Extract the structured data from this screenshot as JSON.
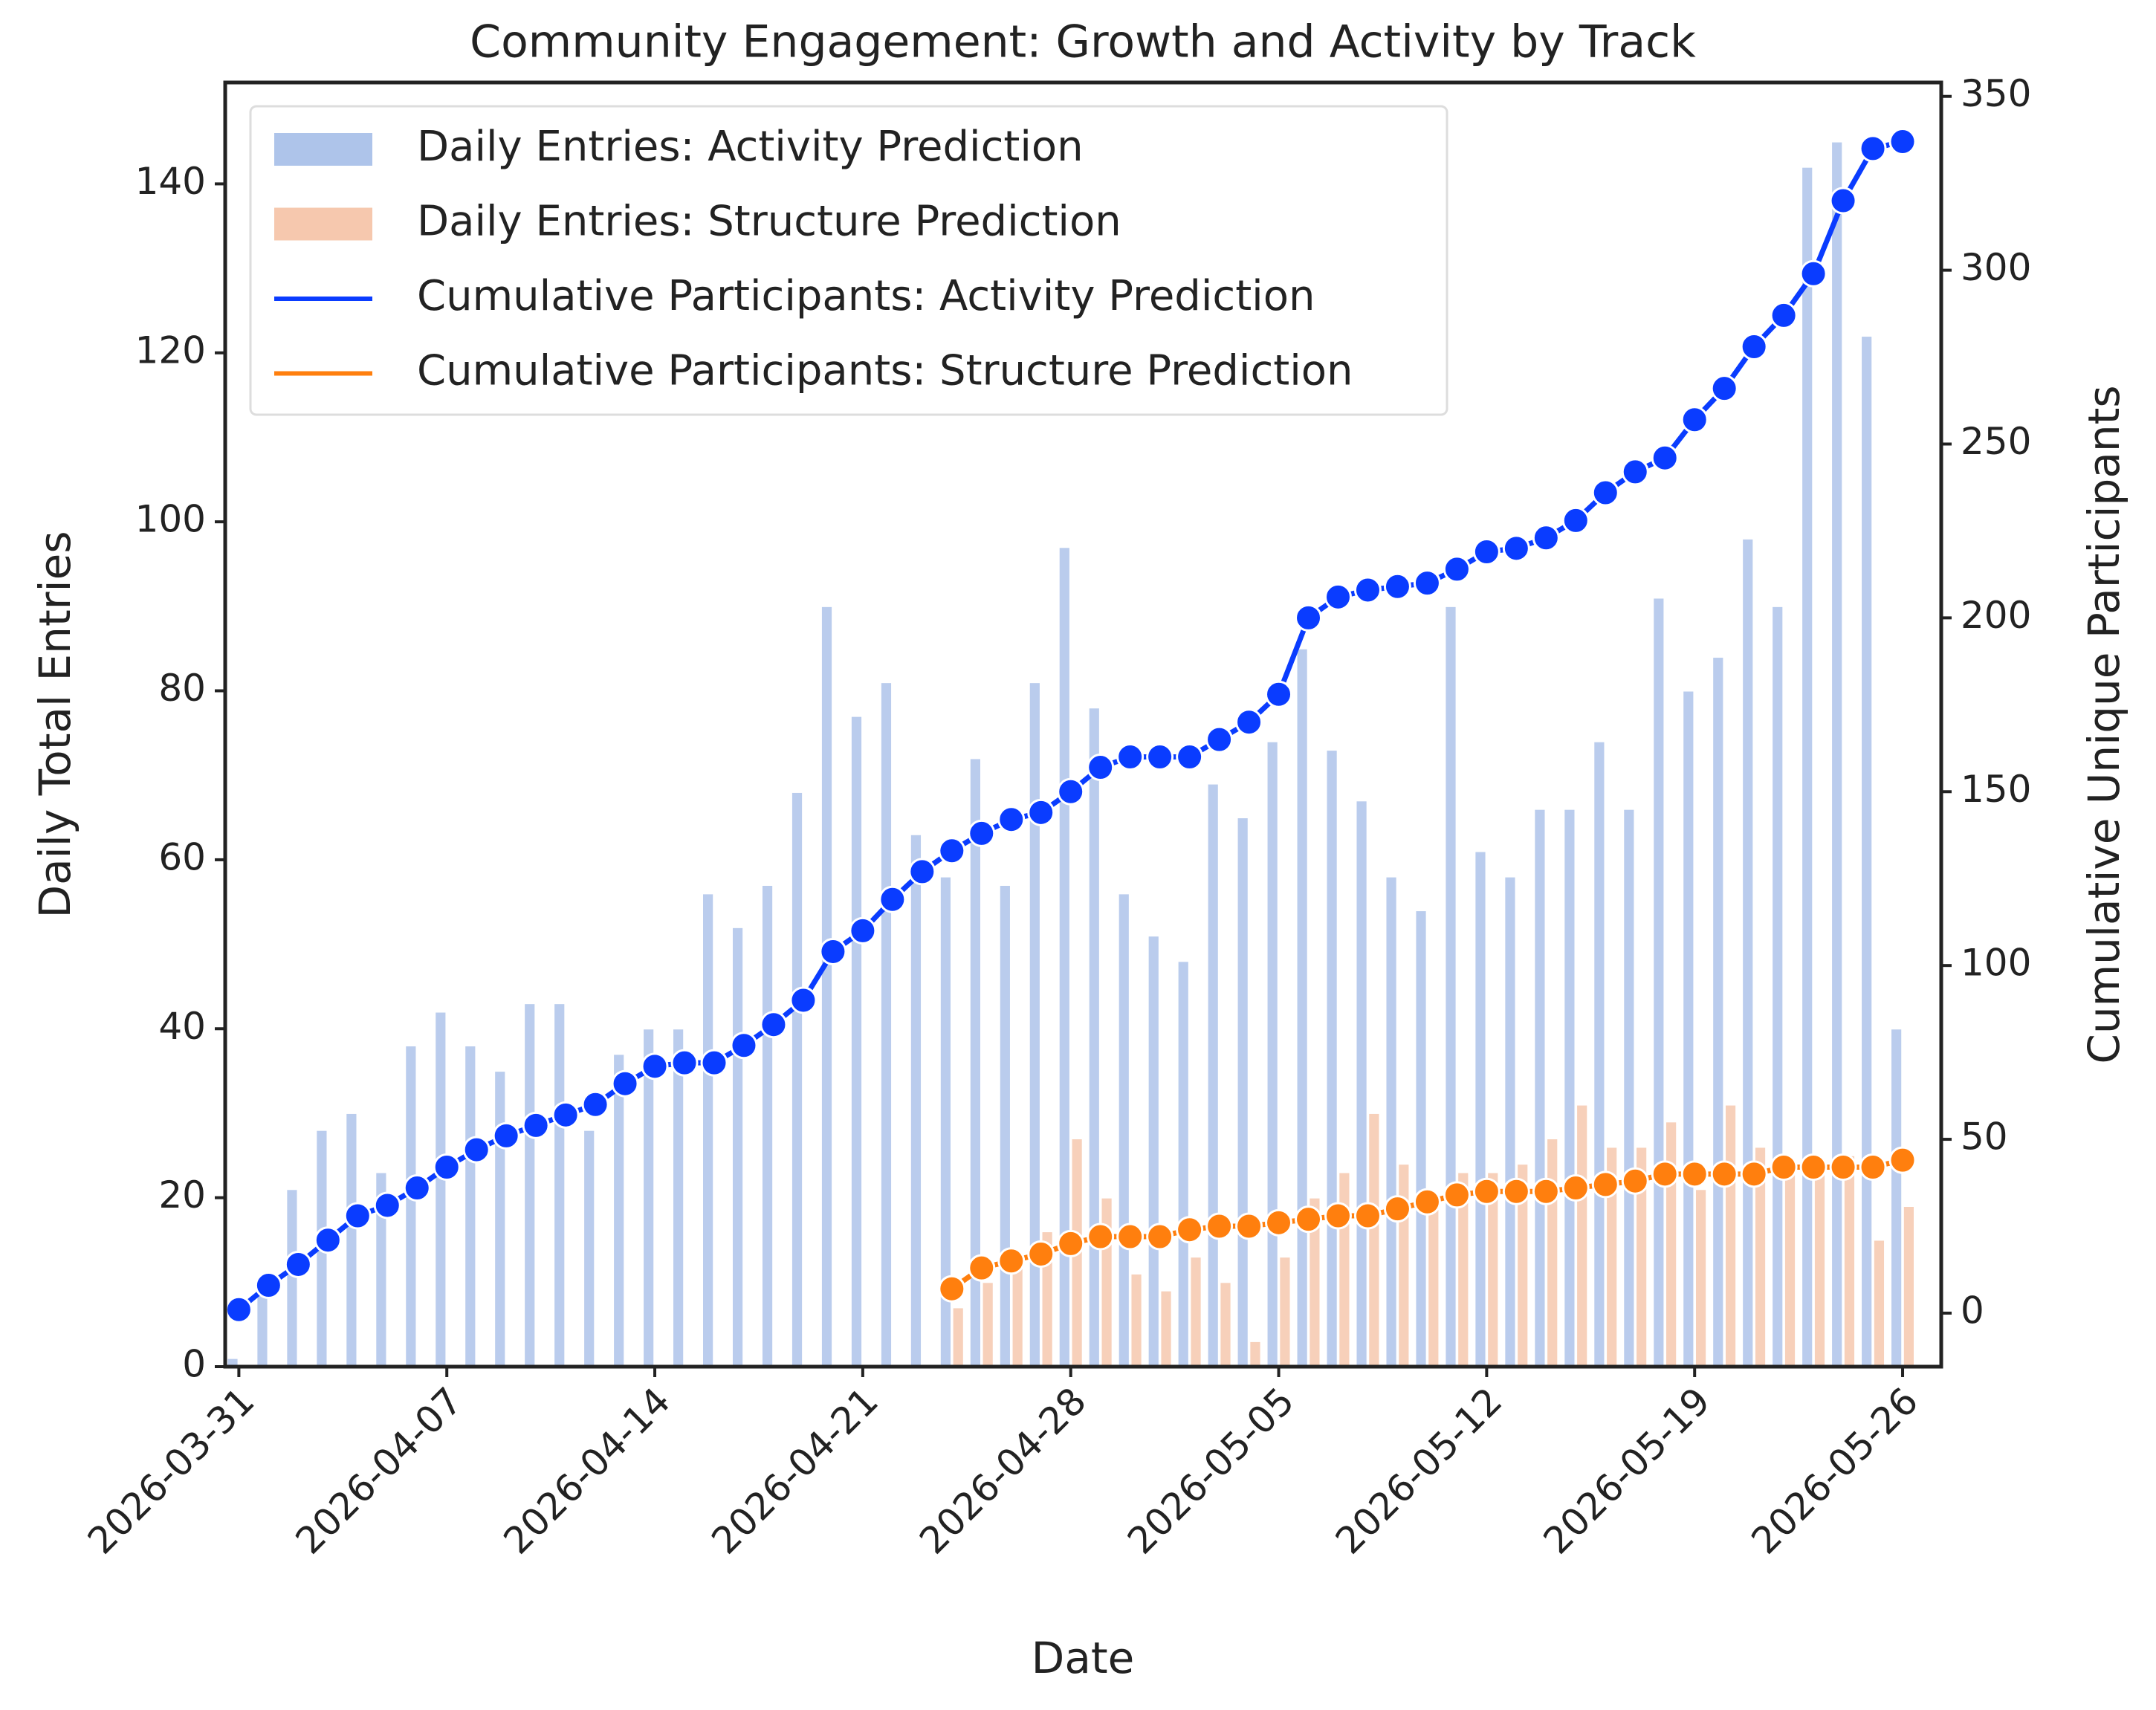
{
  "chart_data": {
    "type": "combo",
    "title": "Community Engagement: Growth and Activity by Track",
    "xlabel": "Date",
    "ylabel": "Daily Total Entries",
    "y2label": "Cumulative Unique Participants",
    "x": [
      "2026-03-31",
      "2026-04-01",
      "2026-04-02",
      "2026-04-03",
      "2026-04-04",
      "2026-04-05",
      "2026-04-06",
      "2026-04-07",
      "2026-04-08",
      "2026-04-09",
      "2026-04-10",
      "2026-04-11",
      "2026-04-12",
      "2026-04-13",
      "2026-04-14",
      "2026-04-15",
      "2026-04-16",
      "2026-04-17",
      "2026-04-18",
      "2026-04-19",
      "2026-04-20",
      "2026-04-21",
      "2026-04-22",
      "2026-04-23",
      "2026-04-24",
      "2026-04-25",
      "2026-04-26",
      "2026-04-27",
      "2026-04-28",
      "2026-04-29",
      "2026-04-30",
      "2026-05-01",
      "2026-05-02",
      "2026-05-03",
      "2026-05-04",
      "2026-05-05",
      "2026-05-06",
      "2026-05-07",
      "2026-05-08",
      "2026-05-09",
      "2026-05-10",
      "2026-05-11",
      "2026-05-12",
      "2026-05-13",
      "2026-05-14",
      "2026-05-15",
      "2026-05-16",
      "2026-05-17",
      "2026-05-18",
      "2026-05-19",
      "2026-05-20",
      "2026-05-21",
      "2026-05-22",
      "2026-05-23",
      "2026-05-24",
      "2026-05-25",
      "2026-05-26"
    ],
    "series": [
      {
        "name": "Daily Entries: Activity Prediction",
        "type": "bar",
        "axis": "y",
        "color": "#aec4ea",
        "values": [
          1,
          10,
          21,
          28,
          30,
          23,
          38,
          42,
          38,
          35,
          43,
          43,
          28,
          37,
          40,
          40,
          56,
          52,
          57,
          68,
          90,
          77,
          81,
          63,
          58,
          72,
          57,
          81,
          97,
          78,
          56,
          51,
          48,
          69,
          65,
          74,
          85,
          73,
          67,
          58,
          54,
          90,
          61,
          58,
          66,
          66,
          74,
          66,
          91,
          80,
          84,
          98,
          90,
          142,
          145,
          122,
          40
        ]
      },
      {
        "name": "Daily Entries: Structure Prediction",
        "type": "bar",
        "axis": "y",
        "color": "#f6c8ae",
        "values": [
          null,
          null,
          null,
          null,
          null,
          null,
          null,
          null,
          null,
          null,
          null,
          null,
          null,
          null,
          null,
          null,
          null,
          null,
          null,
          null,
          null,
          null,
          null,
          null,
          7,
          10,
          12,
          16,
          27,
          20,
          11,
          9,
          13,
          10,
          3,
          13,
          20,
          23,
          30,
          24,
          20,
          23,
          23,
          24,
          27,
          31,
          26,
          26,
          29,
          21,
          31,
          26,
          23,
          24,
          25,
          15,
          19
        ]
      },
      {
        "name": "Cumulative Participants: Activity Prediction",
        "type": "line",
        "axis": "y2",
        "color": "#0a3cff",
        "values": [
          1,
          8,
          14,
          21,
          28,
          31,
          36,
          42,
          47,
          51,
          54,
          57,
          60,
          66,
          71,
          72,
          72,
          77,
          83,
          90,
          104,
          110,
          119,
          127,
          133,
          138,
          142,
          144,
          150,
          157,
          160,
          160,
          160,
          165,
          170,
          178,
          200,
          206,
          208,
          209,
          210,
          214,
          219,
          220,
          223,
          228,
          236,
          242,
          246,
          257,
          266,
          278,
          287,
          299,
          320,
          335,
          337
        ]
      },
      {
        "name": "Cumulative Participants: Structure Prediction",
        "type": "line",
        "axis": "y2",
        "color": "#ff7f0e",
        "values": [
          null,
          null,
          null,
          null,
          null,
          null,
          null,
          null,
          null,
          null,
          null,
          null,
          null,
          null,
          null,
          null,
          null,
          null,
          null,
          null,
          null,
          null,
          null,
          null,
          7,
          13,
          15,
          17,
          20,
          22,
          22,
          22,
          24,
          25,
          25,
          26,
          27,
          28,
          28,
          30,
          32,
          34,
          35,
          35,
          35,
          36,
          37,
          38,
          40,
          40,
          40,
          40,
          42,
          42,
          42,
          42,
          44
        ]
      }
    ],
    "xlim": [
      "2026-03-31",
      "2026-05-26"
    ],
    "xticks": [
      "2026-03-31",
      "2026-04-07",
      "2026-04-14",
      "2026-04-21",
      "2026-04-28",
      "2026-05-05",
      "2026-05-12",
      "2026-05-19",
      "2026-05-26"
    ],
    "ylim": [
      0,
      152
    ],
    "yticks": [
      0,
      20,
      40,
      60,
      80,
      100,
      120,
      140
    ],
    "y2lim": [
      -15.4,
      354
    ],
    "y2ticks": [
      0,
      50,
      100,
      150,
      200,
      250,
      300,
      350
    ],
    "grid": false,
    "legend": "upper left"
  }
}
